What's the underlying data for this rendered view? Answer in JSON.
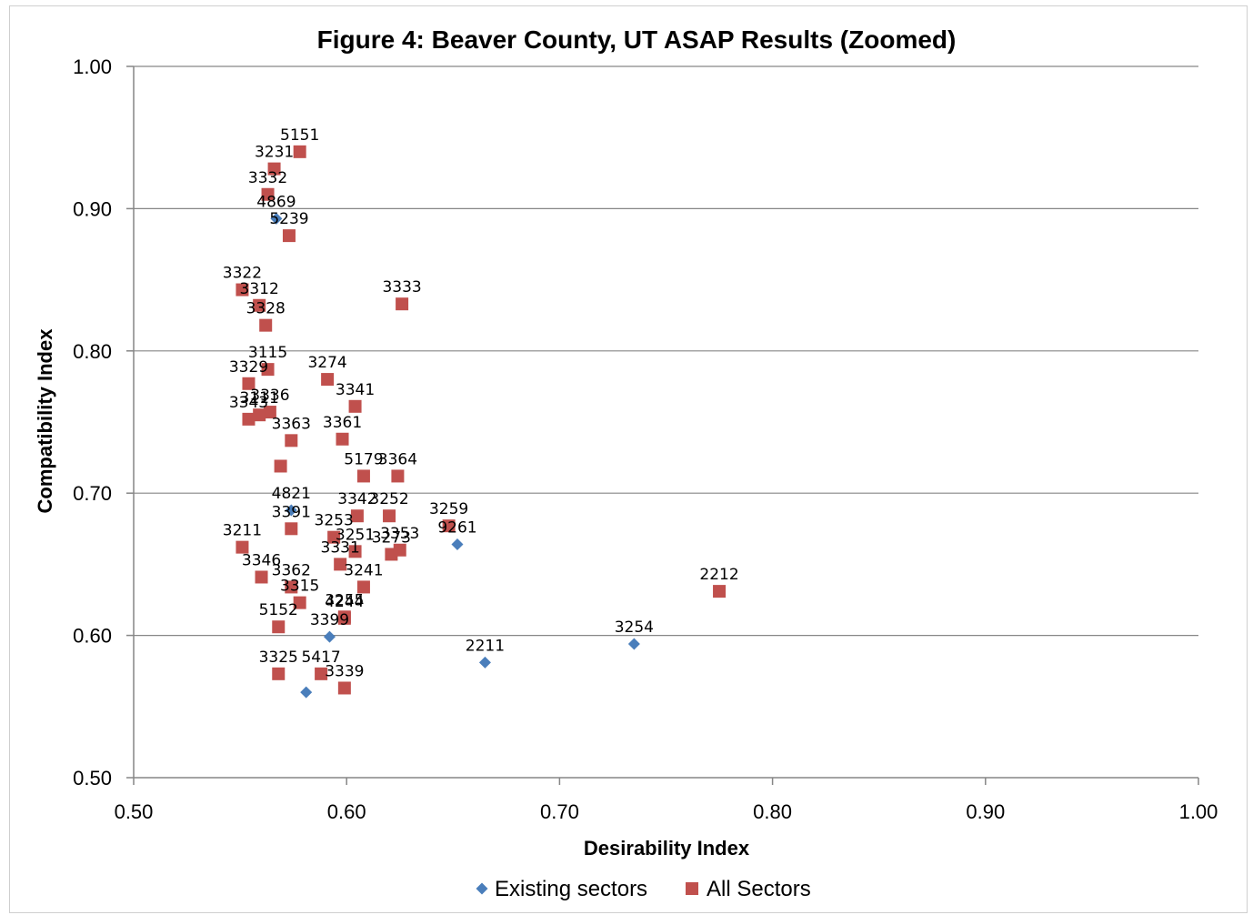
{
  "chart_data": {
    "type": "scatter",
    "title": "Figure 4:  Beaver County, UT ASAP Results (Zoomed)",
    "xlabel": "Desirability Index",
    "ylabel": "Compatibility Index",
    "xlim": [
      0.5,
      1.0
    ],
    "ylim": [
      0.5,
      1.0
    ],
    "x_ticks": [
      "0.50",
      "0.60",
      "0.70",
      "0.80",
      "0.90",
      "1.00"
    ],
    "y_ticks": [
      "0.50",
      "0.60",
      "0.70",
      "0.80",
      "0.90",
      "1.00"
    ],
    "grid": "horizontal",
    "legend_position": "bottom",
    "series": [
      {
        "name": "Existing sectors",
        "marker": "diamond",
        "color": "#4a7ebb",
        "points": [
          {
            "label": "4869",
            "x": 0.567,
            "y": 0.893
          },
          {
            "label": "4821",
            "x": 0.574,
            "y": 0.688
          },
          {
            "label": "9261",
            "x": 0.652,
            "y": 0.664
          },
          {
            "label": "3399",
            "x": 0.592,
            "y": 0.599
          },
          {
            "label": "2211",
            "x": 0.665,
            "y": 0.581
          },
          {
            "label": "",
            "x": 0.581,
            "y": 0.56
          },
          {
            "label": "3254",
            "x": 0.735,
            "y": 0.594
          }
        ]
      },
      {
        "name": "All Sectors",
        "marker": "square",
        "color": "#c0504d",
        "points": [
          {
            "label": "5151",
            "x": 0.578,
            "y": 0.94
          },
          {
            "label": "3231",
            "x": 0.566,
            "y": 0.928
          },
          {
            "label": "3332",
            "x": 0.563,
            "y": 0.91
          },
          {
            "label": "5239",
            "x": 0.573,
            "y": 0.881
          },
          {
            "label": "3322",
            "x": 0.551,
            "y": 0.843
          },
          {
            "label": "3312",
            "x": 0.559,
            "y": 0.832
          },
          {
            "label": "3328",
            "x": 0.562,
            "y": 0.818
          },
          {
            "label": "3333",
            "x": 0.626,
            "y": 0.833
          },
          {
            "label": "3115",
            "x": 0.563,
            "y": 0.787
          },
          {
            "label": "3329",
            "x": 0.554,
            "y": 0.777
          },
          {
            "label": "3274",
            "x": 0.591,
            "y": 0.78
          },
          {
            "label": "3341",
            "x": 0.604,
            "y": 0.761
          },
          {
            "label": "3336",
            "x": 0.564,
            "y": 0.757
          },
          {
            "label": "3343",
            "x": 0.554,
            "y": 0.752
          },
          {
            "label": "3111",
            "x": 0.559,
            "y": 0.755
          },
          {
            "label": "3361",
            "x": 0.598,
            "y": 0.738
          },
          {
            "label": "3363",
            "x": 0.574,
            "y": 0.737
          },
          {
            "label": "",
            "x": 0.569,
            "y": 0.719
          },
          {
            "label": "5179",
            "x": 0.608,
            "y": 0.712
          },
          {
            "label": "3364",
            "x": 0.624,
            "y": 0.712
          },
          {
            "label": "3342",
            "x": 0.605,
            "y": 0.684
          },
          {
            "label": "3252",
            "x": 0.62,
            "y": 0.684
          },
          {
            "label": "3259",
            "x": 0.648,
            "y": 0.677
          },
          {
            "label": "3391",
            "x": 0.574,
            "y": 0.675
          },
          {
            "label": "3253",
            "x": 0.594,
            "y": 0.669
          },
          {
            "label": "3251",
            "x": 0.604,
            "y": 0.659
          },
          {
            "label": "3273",
            "x": 0.621,
            "y": 0.657
          },
          {
            "label": "3353",
            "x": 0.625,
            "y": 0.66
          },
          {
            "label": "3211",
            "x": 0.551,
            "y": 0.662
          },
          {
            "label": "3331",
            "x": 0.597,
            "y": 0.65
          },
          {
            "label": "3346",
            "x": 0.56,
            "y": 0.641
          },
          {
            "label": "3362",
            "x": 0.574,
            "y": 0.634
          },
          {
            "label": "3241",
            "x": 0.608,
            "y": 0.634
          },
          {
            "label": "3315",
            "x": 0.578,
            "y": 0.623
          },
          {
            "label": "3255",
            "x": 0.599,
            "y": 0.613
          },
          {
            "label": "5152",
            "x": 0.568,
            "y": 0.606
          },
          {
            "label": "4244",
            "x": 0.599,
            "y": 0.612
          },
          {
            "label": "3325",
            "x": 0.568,
            "y": 0.573
          },
          {
            "label": "5417",
            "x": 0.588,
            "y": 0.573
          },
          {
            "label": "3339",
            "x": 0.599,
            "y": 0.563
          },
          {
            "label": "2212",
            "x": 0.775,
            "y": 0.631
          }
        ]
      }
    ]
  }
}
